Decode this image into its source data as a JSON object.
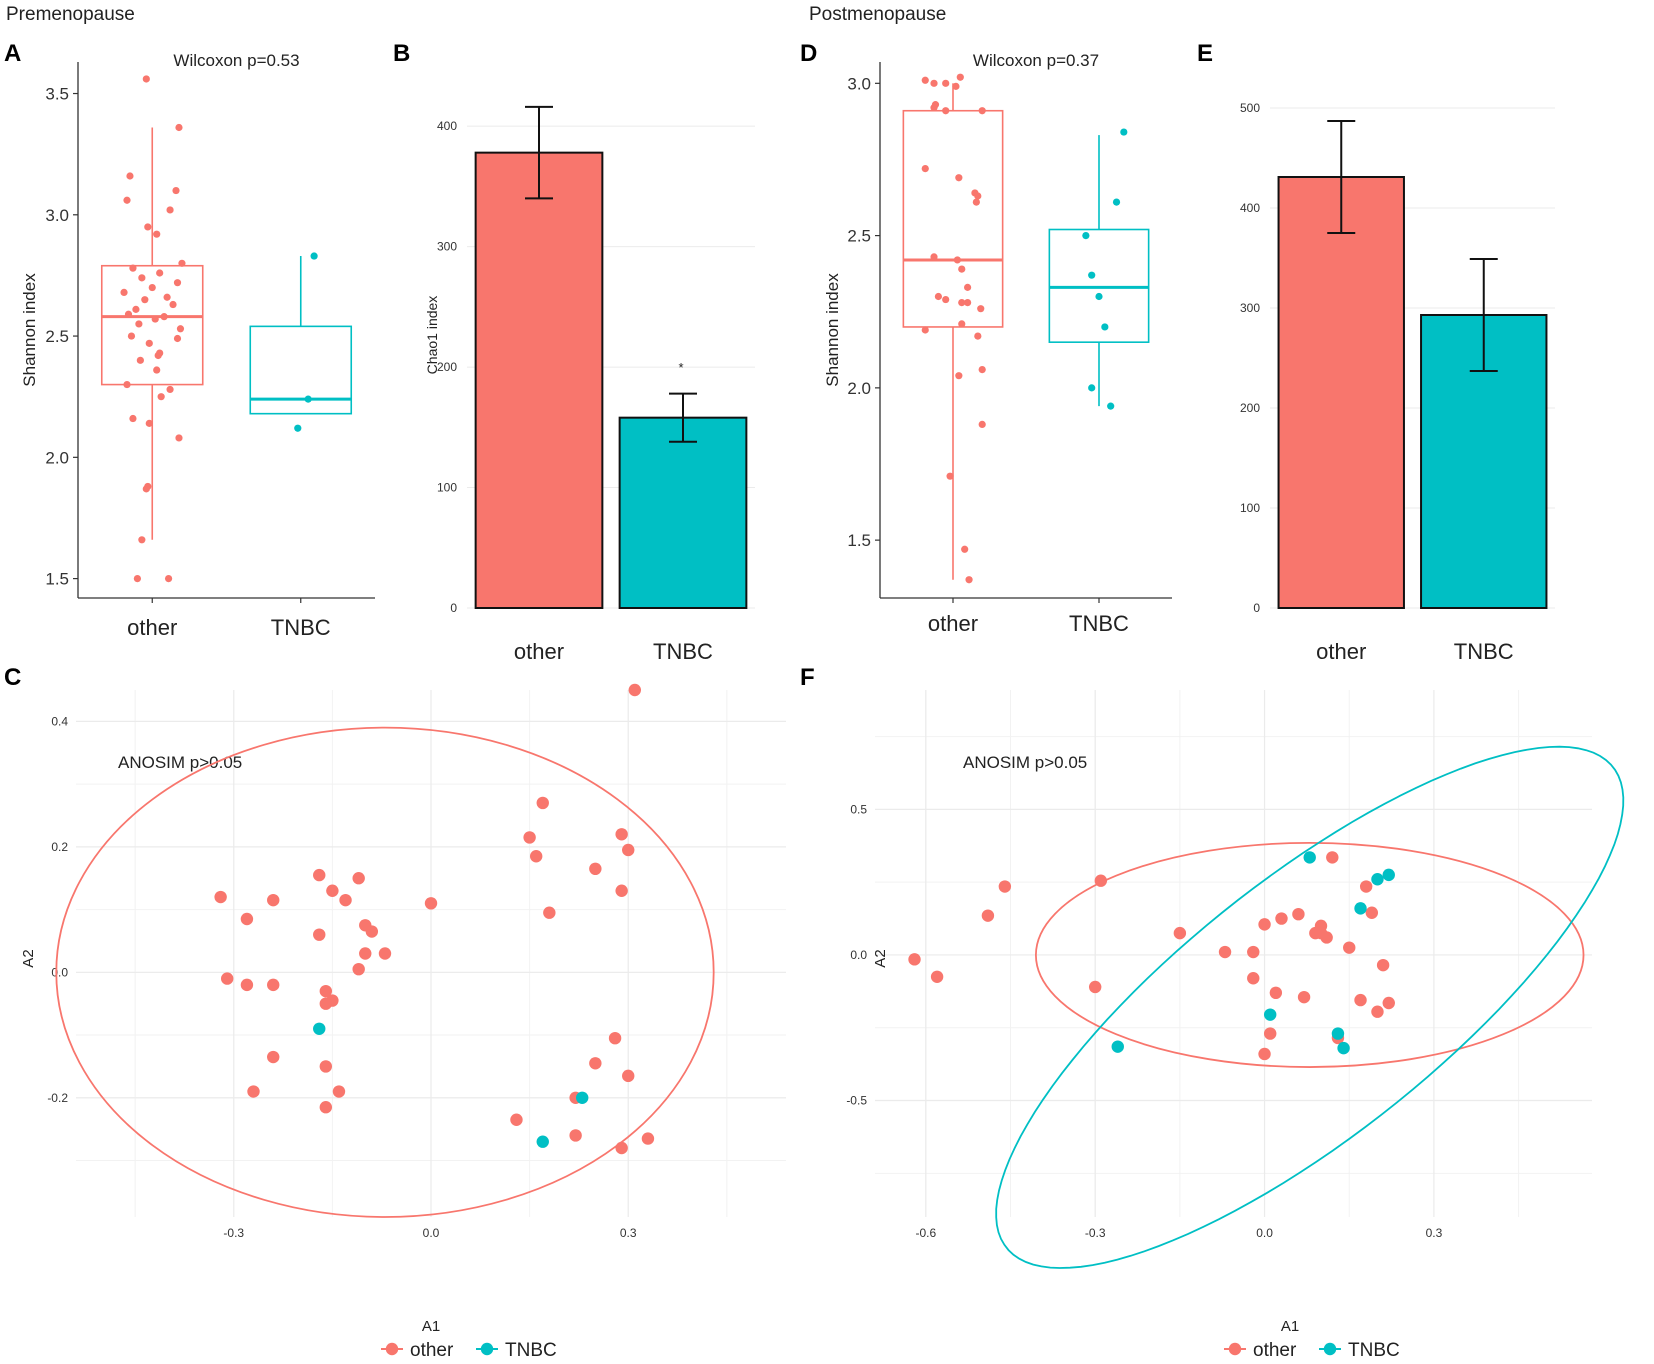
{
  "sections": {
    "left": "Premenopause",
    "right": "Postmenopause"
  },
  "panel_letters": {
    "A": "A",
    "B": "B",
    "C": "C",
    "D": "D",
    "E": "E",
    "F": "F"
  },
  "colors": {
    "other": "#F8766D",
    "tnbc": "#00BFC4",
    "axis": "#333333",
    "grid": "#EBEBEB"
  },
  "chart_data": [
    {
      "id": "A",
      "type": "box",
      "title": "Wilcoxon p=0.53",
      "xlabel": "",
      "ylabel": "Shannon index",
      "categories": [
        "other",
        "TNBC"
      ],
      "ylim": [
        1.42,
        3.63
      ],
      "yticks": [
        1.5,
        2.0,
        2.5,
        3.0,
        3.5
      ],
      "ytick_labels": [
        "1.5",
        "2.0",
        "2.5",
        "3.0",
        "3.5"
      ],
      "boxes": [
        {
          "group": "other",
          "min": 1.66,
          "q1": 2.3,
          "median": 2.58,
          "q3": 2.79,
          "max": 3.36
        },
        {
          "group": "TNBC",
          "min": 2.18,
          "q1": 2.18,
          "median": 2.24,
          "q3": 2.54,
          "max": 2.83
        }
      ],
      "points": [
        {
          "group": "other",
          "values": [
            3.56,
            3.36,
            3.16,
            3.1,
            3.06,
            3.02,
            2.95,
            2.92,
            2.8,
            2.78,
            2.76,
            2.74,
            2.72,
            2.7,
            2.68,
            2.66,
            2.65,
            2.63,
            2.61,
            2.59,
            2.58,
            2.57,
            2.55,
            2.53,
            2.5,
            2.49,
            2.47,
            2.43,
            2.42,
            2.4,
            2.36,
            2.3,
            2.28,
            2.25,
            2.16,
            2.14,
            2.08,
            1.88,
            1.87,
            1.66,
            1.5,
            1.5
          ],
          "jitter": [
            -0.04,
            0.18,
            -0.15,
            0.16,
            -0.17,
            0.12,
            -0.03,
            0.03,
            0.2,
            -0.13,
            0.05,
            -0.07,
            0.17,
            0.0,
            -0.19,
            0.1,
            -0.05,
            0.14,
            -0.11,
            -0.16,
            0.08,
            0.02,
            -0.09,
            0.19,
            -0.14,
            0.17,
            -0.02,
            0.05,
            0.04,
            -0.08,
            0.03,
            -0.17,
            0.12,
            0.06,
            -0.13,
            -0.02,
            0.18,
            -0.03,
            -0.04,
            -0.07,
            -0.1,
            0.11
          ]
        },
        {
          "group": "TNBC",
          "values": [
            2.83,
            2.24,
            2.12
          ],
          "jitter": [
            0.09,
            0.05,
            -0.02
          ]
        }
      ]
    },
    {
      "id": "B",
      "type": "bar",
      "xlabel": "",
      "ylabel": "Chao1 index",
      "categories": [
        "other",
        "TNBC"
      ],
      "values": [
        378,
        158
      ],
      "errors": [
        [
          340,
          416
        ],
        [
          138,
          178
        ]
      ],
      "ylim": [
        0,
        430
      ],
      "yticks": [
        0,
        100,
        200,
        300,
        400
      ],
      "ytick_labels": [
        "0",
        "100",
        "200",
        "300",
        "400"
      ],
      "annotation": "*"
    },
    {
      "id": "C",
      "type": "scatter",
      "title": "ANOSIM p>0.05",
      "xlabel": "A1",
      "ylabel": "A2",
      "xlim": [
        -0.54,
        0.54
      ],
      "ylim": [
        -0.39,
        0.45
      ],
      "xticks": [
        -0.3,
        0.0,
        0.3
      ],
      "xtick_labels": [
        "-0.3",
        "0.0",
        "0.3"
      ],
      "yticks": [
        -0.2,
        0.0,
        0.2,
        0.4
      ],
      "ytick_labels": [
        "-0.2",
        "0.0",
        "0.2",
        "0.4"
      ],
      "series": [
        {
          "name": "other",
          "points": [
            [
              0.31,
              0.45
            ],
            [
              0.17,
              0.27
            ],
            [
              0.15,
              0.215
            ],
            [
              0.16,
              0.185
            ],
            [
              0.29,
              0.22
            ],
            [
              0.3,
              0.195
            ],
            [
              0.25,
              0.165
            ],
            [
              0.29,
              0.13
            ],
            [
              0.18,
              0.095
            ],
            [
              0.0,
              0.11
            ],
            [
              -0.32,
              0.12
            ],
            [
              -0.28,
              0.085
            ],
            [
              -0.24,
              0.115
            ],
            [
              -0.17,
              0.155
            ],
            [
              -0.15,
              0.13
            ],
            [
              -0.13,
              0.115
            ],
            [
              -0.11,
              0.15
            ],
            [
              -0.1,
              0.075
            ],
            [
              -0.09,
              0.065
            ],
            [
              -0.1,
              0.03
            ],
            [
              -0.07,
              0.03
            ],
            [
              -0.11,
              0.005
            ],
            [
              -0.17,
              0.06
            ],
            [
              -0.31,
              -0.01
            ],
            [
              -0.28,
              -0.02
            ],
            [
              -0.24,
              -0.02
            ],
            [
              -0.16,
              -0.03
            ],
            [
              -0.15,
              -0.045
            ],
            [
              -0.16,
              -0.05
            ],
            [
              -0.24,
              -0.135
            ],
            [
              -0.16,
              -0.15
            ],
            [
              -0.27,
              -0.19
            ],
            [
              -0.14,
              -0.19
            ],
            [
              -0.16,
              -0.215
            ],
            [
              0.28,
              -0.105
            ],
            [
              0.25,
              -0.145
            ],
            [
              0.3,
              -0.165
            ],
            [
              0.22,
              -0.2
            ],
            [
              0.13,
              -0.235
            ],
            [
              0.22,
              -0.26
            ],
            [
              0.29,
              -0.28
            ],
            [
              0.33,
              -0.265
            ]
          ]
        },
        {
          "name": "TNBC",
          "points": [
            [
              -0.17,
              -0.09
            ],
            [
              0.23,
              -0.2
            ],
            [
              0.17,
              -0.27
            ]
          ]
        }
      ],
      "ellipses": [
        {
          "name": "other",
          "cx": -0.07,
          "cy": 0.0,
          "rx": 0.5,
          "ry": 0.39,
          "angle": 0
        }
      ],
      "legend": {
        "position": "bottom",
        "entries": [
          "other",
          "TNBC"
        ]
      }
    },
    {
      "id": "D",
      "type": "box",
      "title": "Wilcoxon p=0.37",
      "xlabel": "",
      "ylabel": "Shannon index",
      "categories": [
        "other",
        "TNBC"
      ],
      "ylim": [
        1.31,
        3.07
      ],
      "yticks": [
        1.5,
        2.0,
        2.5,
        3.0
      ],
      "ytick_labels": [
        "1.5",
        "2.0",
        "2.5",
        "3.0"
      ],
      "boxes": [
        {
          "group": "other",
          "min": 1.37,
          "q1": 2.2,
          "median": 2.42,
          "q3": 2.91,
          "max": 3.0
        },
        {
          "group": "TNBC",
          "min": 1.94,
          "q1": 2.15,
          "median": 2.33,
          "q3": 2.52,
          "max": 2.83
        }
      ],
      "points": [
        {
          "group": "other",
          "values": [
            3.02,
            3.01,
            3.0,
            3.0,
            2.99,
            2.93,
            2.92,
            2.91,
            2.91,
            2.72,
            2.69,
            2.64,
            2.63,
            2.61,
            2.43,
            2.42,
            2.39,
            2.33,
            2.3,
            2.29,
            2.28,
            2.28,
            2.26,
            2.21,
            2.19,
            2.17,
            2.06,
            2.04,
            1.88,
            1.71,
            1.47,
            1.37
          ],
          "jitter": [
            0.05,
            -0.19,
            -0.13,
            -0.05,
            0.02,
            -0.12,
            -0.13,
            -0.05,
            0.2,
            -0.19,
            0.04,
            0.15,
            0.17,
            0.16,
            -0.13,
            0.03,
            0.06,
            0.1,
            -0.1,
            -0.05,
            0.06,
            0.1,
            0.19,
            0.06,
            -0.19,
            0.17,
            0.2,
            0.04,
            0.2,
            -0.02,
            0.08,
            0.11
          ]
        },
        {
          "group": "TNBC",
          "values": [
            2.84,
            2.61,
            2.5,
            2.37,
            2.3,
            2.2,
            2.0,
            1.94
          ],
          "jitter": [
            0.17,
            0.12,
            -0.09,
            -0.05,
            0.0,
            0.04,
            -0.05,
            0.08
          ]
        }
      ]
    },
    {
      "id": "E",
      "type": "bar",
      "xlabel": "",
      "ylabel": "Chao1 index",
      "categories": [
        "other",
        "TNBC"
      ],
      "values": [
        431,
        293
      ],
      "errors": [
        [
          375,
          487
        ],
        [
          237,
          349
        ]
      ],
      "ylim": [
        0,
        520
      ],
      "yticks": [
        0,
        100,
        200,
        300,
        400,
        500
      ],
      "ytick_labels": [
        "0",
        "100",
        "200",
        "300",
        "400",
        "500"
      ]
    },
    {
      "id": "F",
      "type": "scatter",
      "title": "ANOSIM p>0.05",
      "xlabel": "A1",
      "ylabel": "A2",
      "xlim": [
        -0.69,
        0.58
      ],
      "ylim": [
        -0.9,
        0.91
      ],
      "xticks": [
        -0.6,
        -0.3,
        0.0,
        0.3
      ],
      "xtick_labels": [
        "-0.6",
        "-0.3",
        "0.0",
        "0.3"
      ],
      "yticks": [
        -0.5,
        0.0,
        0.5
      ],
      "ytick_labels": [
        "-0.5",
        "0.0",
        "0.5"
      ],
      "series": [
        {
          "name": "other",
          "points": [
            [
              -0.62,
              -0.015
            ],
            [
              -0.58,
              -0.075
            ],
            [
              -0.49,
              0.135
            ],
            [
              -0.46,
              0.235
            ],
            [
              -0.29,
              0.255
            ],
            [
              -0.3,
              -0.11
            ],
            [
              0.12,
              0.335
            ],
            [
              0.18,
              0.235
            ],
            [
              0.19,
              0.145
            ],
            [
              0.06,
              0.14
            ],
            [
              0.03,
              0.125
            ],
            [
              0.0,
              0.105
            ],
            [
              0.1,
              0.1
            ],
            [
              0.09,
              0.075
            ],
            [
              0.1,
              0.075
            ],
            [
              0.11,
              0.06
            ],
            [
              -0.15,
              0.075
            ],
            [
              -0.07,
              0.01
            ],
            [
              -0.02,
              0.01
            ],
            [
              0.15,
              0.025
            ],
            [
              0.21,
              -0.035
            ],
            [
              -0.02,
              -0.08
            ],
            [
              0.02,
              -0.13
            ],
            [
              0.07,
              -0.145
            ],
            [
              0.17,
              -0.155
            ],
            [
              0.22,
              -0.165
            ],
            [
              0.2,
              -0.195
            ],
            [
              0.01,
              -0.27
            ],
            [
              0.13,
              -0.285
            ],
            [
              0.0,
              -0.34
            ]
          ]
        },
        {
          "name": "TNBC",
          "points": [
            [
              0.08,
              0.335
            ],
            [
              0.2,
              0.26
            ],
            [
              0.22,
              0.275
            ],
            [
              0.17,
              0.16
            ],
            [
              0.01,
              -0.205
            ],
            [
              -0.26,
              -0.315
            ],
            [
              0.13,
              -0.27
            ],
            [
              0.14,
              -0.32
            ]
          ]
        }
      ],
      "ellipses": [
        {
          "name": "other",
          "cx": 0.08,
          "cy": 0.0,
          "rx": 0.485,
          "ry": 0.385,
          "angle": 0
        },
        {
          "name": "TNBC",
          "cx": 0.08,
          "cy": -0.18,
          "ra": 1.01,
          "rb": 0.3,
          "angle_deg": 61
        }
      ],
      "legend": {
        "position": "bottom",
        "entries": [
          "other",
          "TNBC"
        ]
      }
    }
  ]
}
